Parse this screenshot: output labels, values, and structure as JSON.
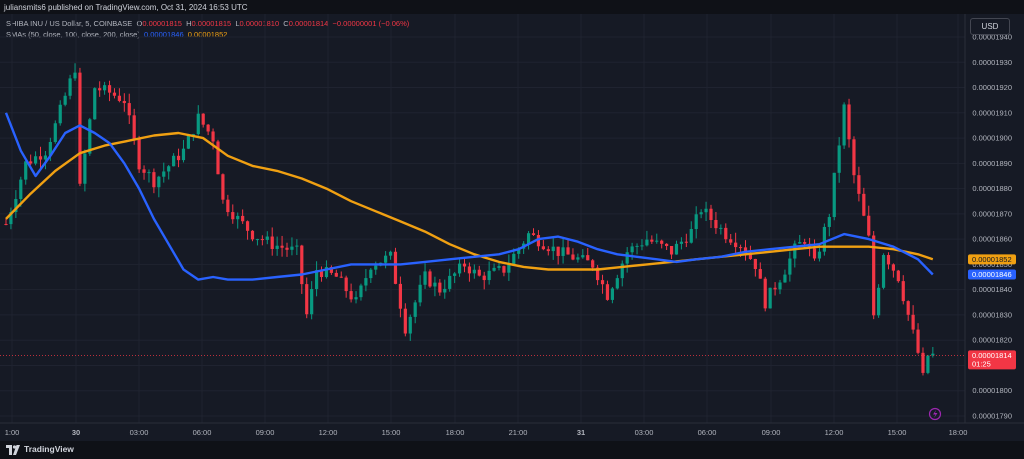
{
  "header": {
    "publisher": "juliansmits6 published on TradingView.com, Oct 31, 2024 16:53 UTC",
    "symbol": "SHIBA INU / US Dollar, 5, COINBASE",
    "ohlc": {
      "o_label": "O",
      "o": "0.00001815",
      "h_label": "H",
      "h": "0.00001815",
      "l_label": "L",
      "l": "0.00001810",
      "c_label": "C",
      "c": "0.00001814",
      "change": "−0.00000001 (−0.06%)"
    },
    "sma_label": "SMAs (50, close, 100, close, 200, close)",
    "sma1_value": "0.00001846",
    "sma2_value": "0.00001852"
  },
  "currency": "USD",
  "footer": {
    "brand": "TradingView"
  },
  "colors": {
    "up": "#089981",
    "down": "#f23645",
    "sma_fast": "#2962ff",
    "sma_slow": "#f0a012",
    "background": "#161a25"
  },
  "chart_data": {
    "type": "candlestick",
    "ylim": [
      1.79e-05,
      1.945e-05
    ],
    "y_ticks": [
      "0.00001940",
      "0.00001930",
      "0.00001920",
      "0.00001910",
      "0.00001900",
      "0.00001890",
      "0.00001880",
      "0.00001870",
      "0.00001860",
      "0.00001850",
      "0.00001840",
      "0.00001830",
      "0.00001820",
      "0.00001810",
      "0.00001800",
      "0.00001790"
    ],
    "x_ticks": [
      "1:00",
      "30",
      "03:00",
      "06:00",
      "09:00",
      "12:00",
      "15:00",
      "18:00",
      "21:00",
      "31",
      "03:00",
      "06:00",
      "09:00",
      "12:00",
      "15:00",
      "18:00"
    ],
    "price_path": [
      [
        0,
        1866
      ],
      [
        4,
        1890
      ],
      [
        8,
        1895
      ],
      [
        10,
        1905
      ],
      [
        14,
        1928
      ],
      [
        15,
        1880
      ],
      [
        18,
        1920
      ],
      [
        21,
        1918
      ],
      [
        24,
        1915
      ],
      [
        27,
        1890
      ],
      [
        30,
        1883
      ],
      [
        36,
        1895
      ],
      [
        39,
        1908
      ],
      [
        42,
        1900
      ],
      [
        44,
        1875
      ],
      [
        47,
        1868
      ],
      [
        50,
        1862
      ],
      [
        54,
        1858
      ],
      [
        59,
        1855
      ],
      [
        61,
        1830
      ],
      [
        63,
        1848
      ],
      [
        67,
        1845
      ],
      [
        71,
        1835
      ],
      [
        74,
        1850
      ],
      [
        78,
        1853
      ],
      [
        81,
        1825
      ],
      [
        85,
        1845
      ],
      [
        88,
        1840
      ],
      [
        93,
        1850
      ],
      [
        96,
        1845
      ],
      [
        101,
        1848
      ],
      [
        106,
        1862
      ],
      [
        112,
        1855
      ],
      [
        119,
        1850
      ],
      [
        122,
        1838
      ],
      [
        126,
        1855
      ],
      [
        130,
        1860
      ],
      [
        135,
        1855
      ],
      [
        139,
        1863
      ],
      [
        141,
        1872
      ],
      [
        146,
        1862
      ],
      [
        149,
        1858
      ],
      [
        152,
        1850
      ],
      [
        154,
        1835
      ],
      [
        158,
        1848
      ],
      [
        160,
        1856
      ],
      [
        162,
        1860
      ],
      [
        164,
        1850
      ],
      [
        167,
        1870
      ],
      [
        170,
        1912
      ],
      [
        172,
        1885
      ],
      [
        175,
        1860
      ],
      [
        176,
        1830
      ],
      [
        178,
        1855
      ],
      [
        181,
        1845
      ],
      [
        183,
        1830
      ],
      [
        185,
        1815
      ],
      [
        186,
        1805
      ],
      [
        187,
        1814
      ]
    ],
    "sma_fast_path": [
      [
        0,
        1910
      ],
      [
        3,
        1895
      ],
      [
        6,
        1885
      ],
      [
        9,
        1893
      ],
      [
        12,
        1902
      ],
      [
        15,
        1905
      ],
      [
        18,
        1902
      ],
      [
        21,
        1898
      ],
      [
        24,
        1890
      ],
      [
        27,
        1880
      ],
      [
        30,
        1868
      ],
      [
        33,
        1858
      ],
      [
        36,
        1848
      ],
      [
        39,
        1844
      ],
      [
        42,
        1845
      ],
      [
        45,
        1844
      ],
      [
        50,
        1844
      ],
      [
        55,
        1845
      ],
      [
        60,
        1846
      ],
      [
        65,
        1848
      ],
      [
        70,
        1850
      ],
      [
        75,
        1850
      ],
      [
        80,
        1850
      ],
      [
        85,
        1851
      ],
      [
        90,
        1852
      ],
      [
        95,
        1853
      ],
      [
        100,
        1854
      ],
      [
        104,
        1856
      ],
      [
        108,
        1860
      ],
      [
        112,
        1861
      ],
      [
        116,
        1859
      ],
      [
        120,
        1856
      ],
      [
        124,
        1854
      ],
      [
        128,
        1853
      ],
      [
        132,
        1852
      ],
      [
        136,
        1851
      ],
      [
        140,
        1852
      ],
      [
        145,
        1853
      ],
      [
        150,
        1855
      ],
      [
        155,
        1856
      ],
      [
        160,
        1857
      ],
      [
        165,
        1858
      ],
      [
        170,
        1862
      ],
      [
        175,
        1860
      ],
      [
        180,
        1857
      ],
      [
        185,
        1852
      ],
      [
        188,
        1846
      ]
    ],
    "sma_slow_path": [
      [
        0,
        1868
      ],
      [
        5,
        1878
      ],
      [
        10,
        1887
      ],
      [
        15,
        1894
      ],
      [
        20,
        1897
      ],
      [
        25,
        1899
      ],
      [
        30,
        1901
      ],
      [
        35,
        1902
      ],
      [
        40,
        1900
      ],
      [
        45,
        1893
      ],
      [
        50,
        1889
      ],
      [
        55,
        1887
      ],
      [
        60,
        1884
      ],
      [
        65,
        1880
      ],
      [
        70,
        1875
      ],
      [
        75,
        1871
      ],
      [
        80,
        1867
      ],
      [
        85,
        1863
      ],
      [
        90,
        1858
      ],
      [
        95,
        1854
      ],
      [
        100,
        1851
      ],
      [
        105,
        1849
      ],
      [
        110,
        1848
      ],
      [
        115,
        1848
      ],
      [
        120,
        1848
      ],
      [
        125,
        1849
      ],
      [
        130,
        1850
      ],
      [
        135,
        1851
      ],
      [
        140,
        1852
      ],
      [
        145,
        1853
      ],
      [
        150,
        1854
      ],
      [
        155,
        1855
      ],
      [
        160,
        1856
      ],
      [
        165,
        1857
      ],
      [
        170,
        1857
      ],
      [
        175,
        1857
      ],
      [
        180,
        1856
      ],
      [
        185,
        1854
      ],
      [
        188,
        1852
      ]
    ],
    "last_price": {
      "value": "0.00001814",
      "countdown": "01:25",
      "color": "#f23645"
    },
    "sma_tags": [
      {
        "value": "0.00001852",
        "color": "#f0a012"
      },
      {
        "value": "0.00001846",
        "color": "#2962ff"
      }
    ]
  }
}
